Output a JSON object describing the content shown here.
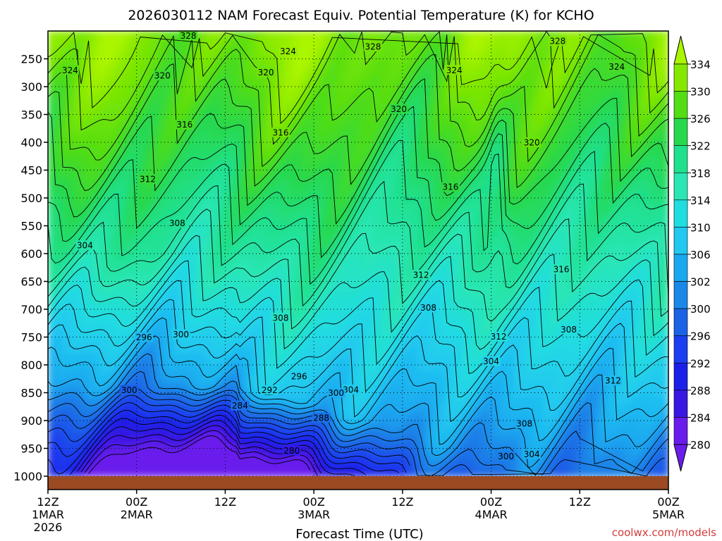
{
  "chart_data": {
    "type": "heatmap",
    "title": "2026030112 NAM Forecast Equiv. Potential Temperature (K) for KCHO",
    "xlabel": "Forecast Time (UTC)",
    "ylabel": "",
    "x_ticks": [
      {
        "hour": 0,
        "lines": [
          "12Z",
          "1MAR",
          "2026"
        ]
      },
      {
        "hour": 12,
        "lines": [
          "00Z",
          "2MAR"
        ]
      },
      {
        "hour": 24,
        "lines": [
          "12Z"
        ]
      },
      {
        "hour": 36,
        "lines": [
          "00Z",
          "3MAR"
        ]
      },
      {
        "hour": 48,
        "lines": [
          "12Z"
        ]
      },
      {
        "hour": 60,
        "lines": [
          "00Z",
          "4MAR"
        ]
      },
      {
        "hour": 72,
        "lines": [
          "12Z"
        ]
      },
      {
        "hour": 84,
        "lines": [
          "00Z",
          "5MAR"
        ]
      }
    ],
    "xlim": [
      0,
      84
    ],
    "y_ticks": [
      250,
      300,
      350,
      400,
      450,
      500,
      550,
      600,
      650,
      700,
      750,
      800,
      850,
      900,
      950,
      1000
    ],
    "ylim": [
      200,
      1000
    ],
    "colorbar_ticks": [
      334,
      330,
      326,
      322,
      318,
      314,
      310,
      306,
      302,
      300,
      296,
      292,
      288,
      284,
      280
    ],
    "colorbar_colors": [
      "#aaf500",
      "#84e800",
      "#52dd14",
      "#28d84c",
      "#1fe08c",
      "#2ae6b5",
      "#20dde0",
      "#21c8f0",
      "#1aa8f0",
      "#1a88e8",
      "#1a62e6",
      "#1a3ef0",
      "#1a20e8",
      "#3818e2",
      "#6a1cec"
    ],
    "contour_labels": [
      {
        "text": "328",
        "hour": 19,
        "p": 208
      },
      {
        "text": "328",
        "hour": 44,
        "p": 228
      },
      {
        "text": "328",
        "hour": 69,
        "p": 218
      },
      {
        "text": "324",
        "hour": 3,
        "p": 270
      },
      {
        "text": "324",
        "hour": 32.5,
        "p": 236
      },
      {
        "text": "324",
        "hour": 55,
        "p": 270
      },
      {
        "text": "324",
        "hour": 77,
        "p": 264
      },
      {
        "text": "320",
        "hour": 15.5,
        "p": 280
      },
      {
        "text": "320",
        "hour": 29.5,
        "p": 274
      },
      {
        "text": "320",
        "hour": 47.5,
        "p": 340
      },
      {
        "text": "320",
        "hour": 65.5,
        "p": 400
      },
      {
        "text": "316",
        "hour": 18.5,
        "p": 368
      },
      {
        "text": "316",
        "hour": 31.5,
        "p": 382
      },
      {
        "text": "316",
        "hour": 54.5,
        "p": 480
      },
      {
        "text": "316",
        "hour": 69.5,
        "p": 628
      },
      {
        "text": "312",
        "hour": 13.5,
        "p": 466
      },
      {
        "text": "312",
        "hour": 50.5,
        "p": 638
      },
      {
        "text": "312",
        "hour": 61,
        "p": 749
      },
      {
        "text": "312",
        "hour": 76.5,
        "p": 828
      },
      {
        "text": "308",
        "hour": 17.5,
        "p": 545
      },
      {
        "text": "308",
        "hour": 31.5,
        "p": 715
      },
      {
        "text": "308",
        "hour": 51.5,
        "p": 697
      },
      {
        "text": "308",
        "hour": 70.5,
        "p": 736
      },
      {
        "text": "308",
        "hour": 64.5,
        "p": 905
      },
      {
        "text": "304",
        "hour": 5,
        "p": 585
      },
      {
        "text": "304",
        "hour": 41,
        "p": 844
      },
      {
        "text": "304",
        "hour": 60,
        "p": 793
      },
      {
        "text": "304",
        "hour": 65.5,
        "p": 960
      },
      {
        "text": "300",
        "hour": 18,
        "p": 745
      },
      {
        "text": "300",
        "hour": 39,
        "p": 850
      },
      {
        "text": "300",
        "hour": 62,
        "p": 964
      },
      {
        "text": "296",
        "hour": 13,
        "p": 750
      },
      {
        "text": "296",
        "hour": 34,
        "p": 820
      },
      {
        "text": "292",
        "hour": 30,
        "p": 845
      },
      {
        "text": "288",
        "hour": 37,
        "p": 895
      },
      {
        "text": "284",
        "hour": 26,
        "p": 873
      },
      {
        "text": "280",
        "hour": 33,
        "p": 954
      },
      {
        "text": "300",
        "hour": 11,
        "p": 845
      }
    ]
  },
  "credit": "coolwx.com/models"
}
